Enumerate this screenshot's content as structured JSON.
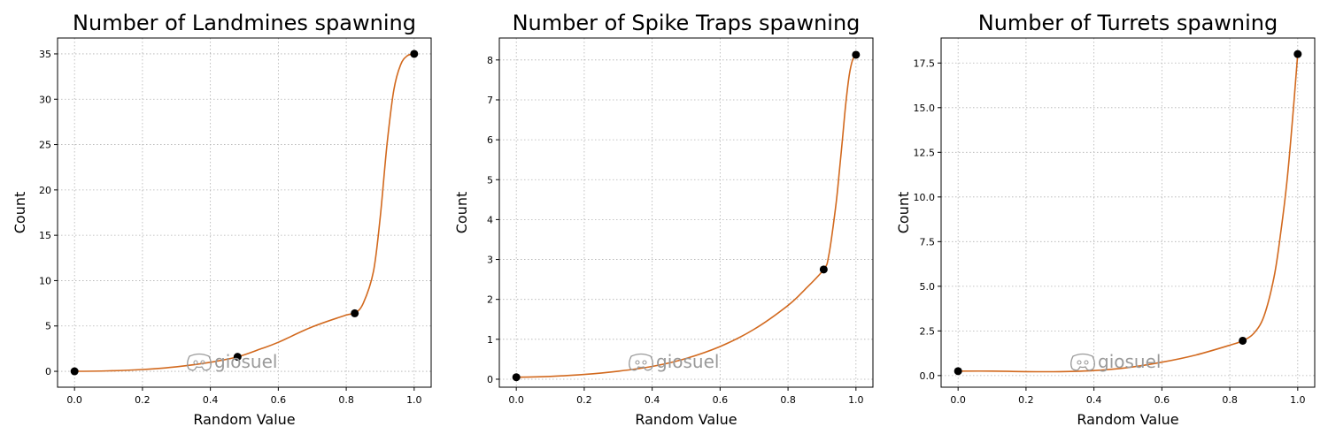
{
  "colors": {
    "curve": "#d2691e",
    "marker": "#000000",
    "grid": "#b0b0b0",
    "watermark": "#9a9a9a"
  },
  "watermark": {
    "text": "giosuel",
    "icon": "discord-icon"
  },
  "chart_data": [
    {
      "type": "line",
      "title": "Number of Landmines spawning",
      "xlabel": "Random Value",
      "ylabel": "Count",
      "xlim": [
        -0.05,
        1.05
      ],
      "ylim": [
        -1.75,
        36.75
      ],
      "xticks": [
        0.0,
        0.2,
        0.4,
        0.6,
        0.8,
        1.0
      ],
      "xtick_labels": [
        "0.0",
        "0.2",
        "0.4",
        "0.6",
        "0.8",
        "1.0"
      ],
      "yticks": [
        0,
        5,
        10,
        15,
        20,
        25,
        30,
        35
      ],
      "ytick_labels": [
        "0",
        "5",
        "10",
        "15",
        "20",
        "25",
        "30",
        "35"
      ],
      "grid": true,
      "keyframes": {
        "x": [
          0.0,
          0.48,
          0.825,
          1.0
        ],
        "y": [
          0.0,
          1.6,
          6.4,
          35.0
        ]
      },
      "curve": {
        "x": [
          0.0,
          0.1,
          0.2,
          0.3,
          0.4,
          0.48,
          0.55,
          0.6,
          0.7,
          0.8,
          0.825,
          0.85,
          0.88,
          0.9,
          0.92,
          0.94,
          0.96,
          0.98,
          1.0
        ],
        "y": [
          0.0,
          0.05,
          0.2,
          0.5,
          1.0,
          1.6,
          2.5,
          3.2,
          4.9,
          6.2,
          6.4,
          7.5,
          11.0,
          17.0,
          25.0,
          31.0,
          33.8,
          34.8,
          35.0
        ]
      }
    },
    {
      "type": "line",
      "title": "Number of Spike Traps spawning",
      "xlabel": "Random Value",
      "ylabel": "Count",
      "xlim": [
        -0.05,
        1.05
      ],
      "ylim": [
        -0.2,
        8.55
      ],
      "xticks": [
        0.0,
        0.2,
        0.4,
        0.6,
        0.8,
        1.0
      ],
      "xtick_labels": [
        "0.0",
        "0.2",
        "0.4",
        "0.6",
        "0.8",
        "1.0"
      ],
      "yticks": [
        0,
        1,
        2,
        3,
        4,
        5,
        6,
        7,
        8
      ],
      "ytick_labels": [
        "0",
        "1",
        "2",
        "3",
        "4",
        "5",
        "6",
        "7",
        "8"
      ],
      "grid": true,
      "keyframes": {
        "x": [
          0.0,
          0.905,
          1.0
        ],
        "y": [
          0.05,
          2.75,
          8.13
        ]
      },
      "curve": {
        "x": [
          0.0,
          0.1,
          0.2,
          0.3,
          0.4,
          0.5,
          0.6,
          0.7,
          0.8,
          0.85,
          0.905,
          0.92,
          0.94,
          0.95,
          0.96,
          0.97,
          0.98,
          0.99,
          1.0
        ],
        "y": [
          0.05,
          0.07,
          0.12,
          0.2,
          0.32,
          0.52,
          0.82,
          1.25,
          1.85,
          2.25,
          2.75,
          3.1,
          4.3,
          5.1,
          6.0,
          6.9,
          7.6,
          8.0,
          8.13
        ]
      }
    },
    {
      "type": "line",
      "title": "Number of Turrets spawning",
      "xlabel": "Random Value",
      "ylabel": "Count",
      "xlim": [
        -0.05,
        1.05
      ],
      "ylim": [
        -0.65,
        18.9
      ],
      "xticks": [
        0.0,
        0.2,
        0.4,
        0.6,
        0.8,
        1.0
      ],
      "xtick_labels": [
        "0.0",
        "0.2",
        "0.4",
        "0.6",
        "0.8",
        "1.0"
      ],
      "yticks": [
        0.0,
        2.5,
        5.0,
        7.5,
        10.0,
        12.5,
        15.0,
        17.5
      ],
      "ytick_labels": [
        "0.0",
        "2.5",
        "5.0",
        "7.5",
        "10.0",
        "12.5",
        "15.0",
        "17.5"
      ],
      "grid": true,
      "keyframes": {
        "x": [
          0.0,
          0.838,
          1.0
        ],
        "y": [
          0.25,
          1.95,
          18.0
        ]
      },
      "curve": {
        "x": [
          0.0,
          0.1,
          0.2,
          0.3,
          0.4,
          0.5,
          0.6,
          0.7,
          0.8,
          0.838,
          0.87,
          0.9,
          0.93,
          0.95,
          0.97,
          0.99,
          1.0
        ],
        "y": [
          0.25,
          0.25,
          0.22,
          0.22,
          0.28,
          0.45,
          0.75,
          1.15,
          1.7,
          1.95,
          2.35,
          3.3,
          5.5,
          8.0,
          11.2,
          15.6,
          18.0
        ]
      }
    }
  ]
}
